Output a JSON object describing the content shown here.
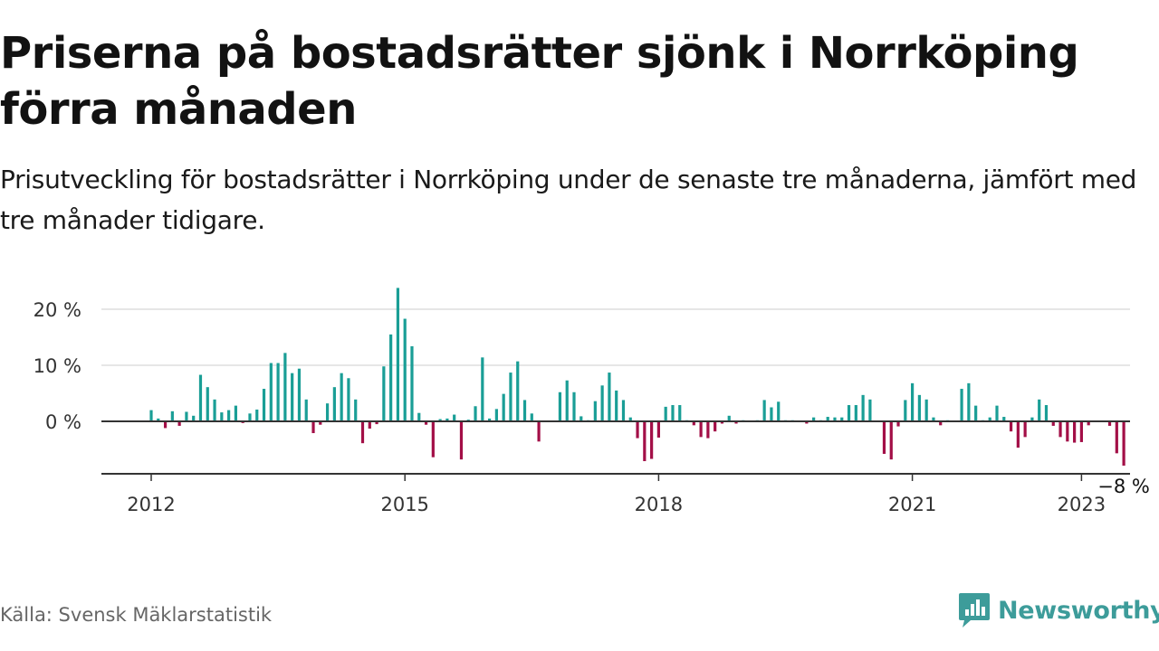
{
  "title": "Priserna på bostadsrätter sjönk i Norrköping förra månaden",
  "subtitle": "Prisutveckling för bostadsrätter i Norrköping under de senaste tre månaderna, jämfört med tre månader tidigare.",
  "source": "Källa: Svensk Mäklarstatistik",
  "brand": {
    "name": "Newsworthy",
    "icon": "newsworthy-logo-icon",
    "color": "#3d9c9a"
  },
  "chart_data": {
    "type": "bar",
    "title": "",
    "xlabel": "",
    "ylabel": "",
    "ylim": [
      -9,
      25
    ],
    "yticks": [
      {
        "value": 0,
        "label": "0 %"
      },
      {
        "value": 10,
        "label": "10 %"
      },
      {
        "value": 20,
        "label": "20 %"
      }
    ],
    "xticks": [
      {
        "value": 2012,
        "label": "2012"
      },
      {
        "value": 2015,
        "label": "2015"
      },
      {
        "value": 2018,
        "label": "2018"
      },
      {
        "value": 2021,
        "label": "2021"
      },
      {
        "value": 2023,
        "label": "2023"
      }
    ],
    "x_start": 2012,
    "x_step": 0.0833333,
    "colors": {
      "positive": "#1a9e96",
      "negative": "#a30f47"
    },
    "grid": true,
    "last_label": "−8 %",
    "values": [
      2.0,
      0.5,
      -1.2,
      1.8,
      -0.8,
      1.7,
      1.0,
      8.3,
      6.1,
      3.9,
      1.6,
      2.0,
      2.8,
      -0.3,
      1.4,
      2.1,
      5.8,
      10.4,
      10.4,
      12.2,
      8.6,
      9.4,
      3.9,
      -2.1,
      -0.6,
      3.2,
      6.1,
      8.6,
      7.7,
      3.9,
      -3.9,
      -1.3,
      -0.5,
      9.8,
      15.5,
      23.8,
      18.3,
      13.4,
      1.5,
      -0.6,
      -6.4,
      0.4,
      0.5,
      1.2,
      -6.8,
      0.3,
      2.7,
      11.4,
      0.5,
      2.2,
      4.9,
      8.7,
      10.7,
      3.8,
      1.4,
      -3.6,
      0.1,
      0.1,
      5.2,
      7.3,
      5.2,
      0.9,
      0.2,
      3.6,
      6.4,
      8.7,
      5.5,
      3.8,
      0.7,
      -3.0,
      -7.1,
      -6.7,
      -2.9,
      2.6,
      2.9,
      2.9,
      0.2,
      -0.7,
      -2.8,
      -3.0,
      -1.8,
      -0.4,
      1.0,
      -0.4,
      0.2,
      0.1,
      0.2,
      3.8,
      2.5,
      3.5,
      0.2,
      0.2,
      0.1,
      -0.4,
      0.7,
      0.2,
      0.8,
      0.7,
      0.7,
      2.9,
      2.9,
      4.7,
      3.9,
      0.1,
      -5.8,
      -6.8,
      -0.9,
      3.8,
      6.8,
      4.7,
      3.9,
      0.7,
      -0.7,
      0.2,
      0.1,
      5.8,
      6.8,
      2.8,
      0.2,
      0.7,
      2.8,
      0.8,
      -1.8,
      -4.7,
      -2.8,
      0.7,
      3.9,
      2.9,
      -0.8,
      -2.8,
      -3.6,
      -3.8,
      -3.7,
      -0.7,
      -0.1,
      -0.1,
      -0.8,
      -5.7,
      -7.9
    ]
  }
}
